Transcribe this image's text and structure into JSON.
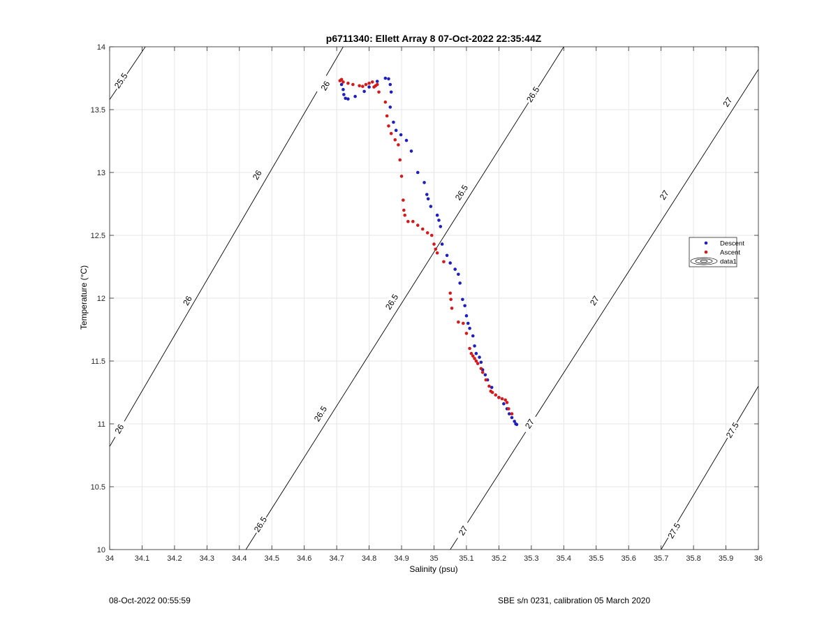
{
  "chart_data": {
    "type": "scatter",
    "title": "p6711340: Ellett Array 8 07-Oct-2022 22:35:44Z",
    "xlabel": "Salinity (psu)",
    "ylabel": "Temperature (°C)",
    "xlim": [
      34,
      36
    ],
    "ylim": [
      10,
      14
    ],
    "x_ticks": [
      "34",
      "34.1",
      "34.2",
      "34.3",
      "34.4",
      "34.5",
      "34.6",
      "34.7",
      "34.8",
      "34.9",
      "35",
      "35.1",
      "35.2",
      "35.3",
      "35.4",
      "35.5",
      "35.6",
      "35.7",
      "35.8",
      "35.9",
      "36"
    ],
    "y_ticks": [
      "10",
      "10.5",
      "11",
      "11.5",
      "12",
      "12.5",
      "13",
      "13.5",
      "14"
    ],
    "grid": true,
    "legend_position": "right",
    "legend": [
      {
        "label": "Descent",
        "color": "#1f1fbf",
        "marker": "dot"
      },
      {
        "label": "Ascent",
        "color": "#d41a1a",
        "marker": "dot"
      },
      {
        "label": "data1",
        "color": "#000000",
        "marker": "contour"
      }
    ],
    "contours": [
      {
        "label": "25.5",
        "line": [
          [
            34.0,
            13.58
          ],
          [
            34.11,
            14.0
          ]
        ],
        "labels_at": [
          [
            34.035,
            13.73
          ]
        ]
      },
      {
        "label": "26",
        "line": [
          [
            34.0,
            10.82
          ],
          [
            34.72,
            14.0
          ]
        ],
        "labels_at": [
          [
            34.03,
            10.96
          ],
          [
            34.24,
            11.98
          ],
          [
            34.455,
            12.98
          ],
          [
            34.665,
            13.69
          ]
        ]
      },
      {
        "label": "26.5",
        "line": [
          [
            34.42,
            10.0
          ],
          [
            35.4,
            14.0
          ]
        ],
        "labels_at": [
          [
            34.465,
            10.2
          ],
          [
            34.65,
            11.08
          ],
          [
            34.87,
            11.97
          ],
          [
            35.085,
            12.84
          ],
          [
            35.305,
            13.62
          ]
        ]
      },
      {
        "label": "27",
        "line": [
          [
            35.05,
            10.0
          ],
          [
            36.0,
            13.82
          ]
        ],
        "labels_at": [
          [
            35.09,
            10.15
          ],
          [
            35.295,
            11.0
          ],
          [
            35.495,
            11.98
          ],
          [
            35.71,
            12.82
          ],
          [
            35.905,
            13.56
          ]
        ]
      },
      {
        "label": "27.5",
        "line": [
          [
            35.7,
            10.0
          ],
          [
            36.0,
            11.3
          ]
        ],
        "labels_at": [
          [
            35.74,
            10.15
          ],
          [
            35.92,
            10.95
          ]
        ]
      }
    ],
    "series": [
      {
        "name": "Descent",
        "color": "#1f1fbf",
        "points": [
          [
            34.715,
            13.7
          ],
          [
            34.72,
            13.66
          ],
          [
            34.722,
            13.62
          ],
          [
            34.727,
            13.59
          ],
          [
            34.735,
            13.585
          ],
          [
            34.757,
            13.605
          ],
          [
            34.785,
            13.645
          ],
          [
            34.8,
            13.68
          ],
          [
            34.825,
            13.725
          ],
          [
            34.85,
            13.75
          ],
          [
            34.86,
            13.745
          ],
          [
            34.865,
            13.7
          ],
          [
            34.868,
            13.64
          ],
          [
            34.865,
            13.52
          ],
          [
            34.875,
            13.4
          ],
          [
            34.883,
            13.335
          ],
          [
            34.898,
            13.3
          ],
          [
            34.915,
            13.255
          ],
          [
            34.93,
            13.17
          ],
          [
            34.95,
            13.0
          ],
          [
            34.97,
            12.92
          ],
          [
            34.978,
            12.825
          ],
          [
            34.982,
            12.79
          ],
          [
            34.99,
            12.73
          ],
          [
            35.01,
            12.66
          ],
          [
            35.015,
            12.62
          ],
          [
            35.02,
            12.57
          ],
          [
            35.025,
            12.43
          ],
          [
            35.04,
            12.34
          ],
          [
            35.05,
            12.28
          ],
          [
            35.065,
            12.23
          ],
          [
            35.075,
            12.19
          ],
          [
            35.08,
            12.12
          ],
          [
            35.088,
            11.99
          ],
          [
            35.095,
            11.94
          ],
          [
            35.1,
            11.86
          ],
          [
            35.105,
            11.8
          ],
          [
            35.11,
            11.76
          ],
          [
            35.12,
            11.7
          ],
          [
            35.125,
            11.62
          ],
          [
            35.13,
            11.56
          ],
          [
            35.14,
            11.53
          ],
          [
            35.145,
            11.49
          ],
          [
            35.15,
            11.43
          ],
          [
            35.158,
            11.39
          ],
          [
            35.165,
            11.35
          ],
          [
            35.178,
            11.29
          ],
          [
            35.2,
            11.21
          ],
          [
            35.215,
            11.16
          ],
          [
            35.225,
            11.12
          ],
          [
            35.232,
            11.08
          ],
          [
            35.24,
            11.05
          ],
          [
            35.248,
            11.02
          ],
          [
            35.252,
            11.0
          ],
          [
            35.255,
            10.995
          ]
        ]
      },
      {
        "name": "Ascent",
        "color": "#d41a1a",
        "points": [
          [
            34.71,
            13.73
          ],
          [
            34.715,
            13.74
          ],
          [
            34.72,
            13.72
          ],
          [
            34.735,
            13.71
          ],
          [
            34.75,
            13.7
          ],
          [
            34.77,
            13.69
          ],
          [
            34.78,
            13.685
          ],
          [
            34.79,
            13.7
          ],
          [
            34.8,
            13.71
          ],
          [
            34.81,
            13.72
          ],
          [
            34.815,
            13.68
          ],
          [
            34.82,
            13.69
          ],
          [
            34.825,
            13.7
          ],
          [
            34.83,
            13.64
          ],
          [
            34.85,
            13.56
          ],
          [
            34.855,
            13.45
          ],
          [
            34.86,
            13.37
          ],
          [
            34.868,
            13.31
          ],
          [
            34.88,
            13.26
          ],
          [
            34.89,
            13.22
          ],
          [
            34.895,
            13.1
          ],
          [
            34.9,
            12.97
          ],
          [
            34.905,
            12.78
          ],
          [
            34.907,
            12.7
          ],
          [
            34.91,
            12.66
          ],
          [
            34.92,
            12.61
          ],
          [
            34.935,
            12.61
          ],
          [
            34.95,
            12.58
          ],
          [
            34.965,
            12.55
          ],
          [
            34.98,
            12.52
          ],
          [
            34.993,
            12.5
          ],
          [
            35.0,
            12.43
          ],
          [
            35.005,
            12.39
          ],
          [
            35.01,
            12.36
          ],
          [
            35.03,
            12.29
          ],
          [
            35.05,
            12.04
          ],
          [
            35.052,
            11.99
          ],
          [
            35.055,
            11.92
          ],
          [
            35.075,
            11.81
          ],
          [
            35.09,
            11.8
          ],
          [
            35.1,
            11.72
          ],
          [
            35.11,
            11.6
          ],
          [
            35.115,
            11.56
          ],
          [
            35.12,
            11.54
          ],
          [
            35.125,
            11.52
          ],
          [
            35.13,
            11.5
          ],
          [
            35.135,
            11.48
          ],
          [
            35.145,
            11.44
          ],
          [
            35.15,
            11.41
          ],
          [
            35.16,
            11.35
          ],
          [
            35.17,
            11.3
          ],
          [
            35.175,
            11.26
          ],
          [
            35.18,
            11.25
          ],
          [
            35.19,
            11.23
          ],
          [
            35.2,
            11.21
          ],
          [
            35.21,
            11.2
          ],
          [
            35.22,
            11.19
          ],
          [
            35.225,
            11.17
          ],
          [
            35.23,
            11.12
          ],
          [
            35.24,
            11.08
          ]
        ]
      }
    ]
  },
  "footer": {
    "timestamp": "08-Oct-2022 00:55:59",
    "calibration": "SBE s/n 0231, calibration 05 March 2020"
  }
}
